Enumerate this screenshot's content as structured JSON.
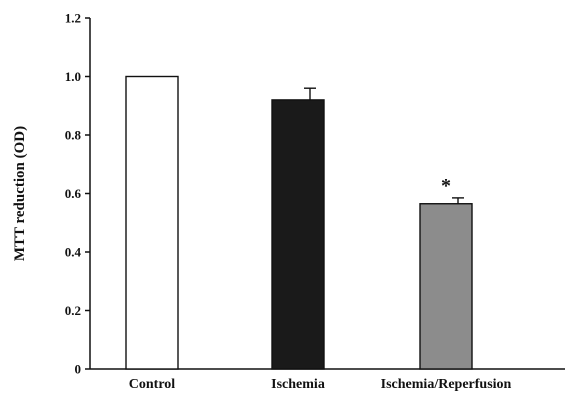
{
  "chart_data": {
    "type": "bar",
    "title": "",
    "xlabel": "",
    "ylabel": "MTT reduction (OD)",
    "ylim": [
      0,
      1.2
    ],
    "yticks": [
      "0",
      "0.2",
      "0.4",
      "0.6",
      "0.8",
      "1.0",
      "1.2"
    ],
    "grid": false,
    "legend": "none",
    "categories": [
      "Control",
      "Ischemia",
      "Ischemia/Reperfusion"
    ],
    "values": [
      1.0,
      0.92,
      0.565
    ],
    "errors": [
      0,
      0.04,
      0.02
    ],
    "bar_colors": [
      "#ffffff",
      "#1a1a1a",
      "#8c8c8c"
    ],
    "annotations": [
      {
        "category": "Ischemia/Reperfusion",
        "text": "*"
      }
    ]
  }
}
